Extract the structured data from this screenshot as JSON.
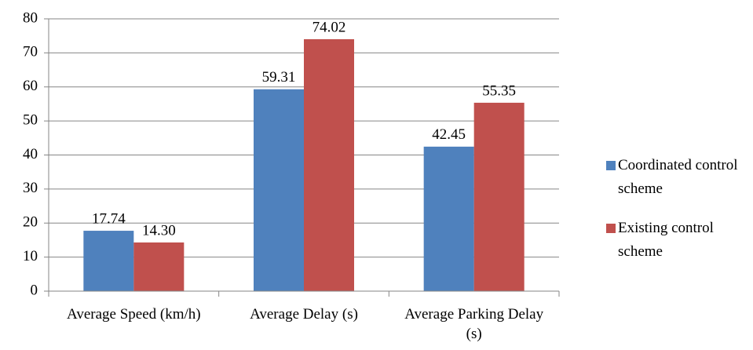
{
  "chart_data": {
    "type": "bar",
    "categories": [
      "Average Speed (km/h)",
      "Average Delay (s)",
      "Average Parking Delay (s)"
    ],
    "series": [
      {
        "name": "Coordinated control scheme",
        "color": "#4f81bd",
        "values": [
          17.74,
          59.31,
          42.45
        ],
        "value_labels": [
          "17.74",
          "59.31",
          "42.45"
        ]
      },
      {
        "name": "Existing control scheme",
        "color": "#c0504d",
        "values": [
          14.3,
          74.02,
          55.35
        ],
        "value_labels": [
          "14.30",
          "74.02",
          "55.35"
        ]
      }
    ],
    "ylim": [
      0,
      80
    ],
    "yticks": [
      0,
      10,
      20,
      30,
      40,
      50,
      60,
      70,
      80
    ],
    "grid": true,
    "legend": "right"
  }
}
